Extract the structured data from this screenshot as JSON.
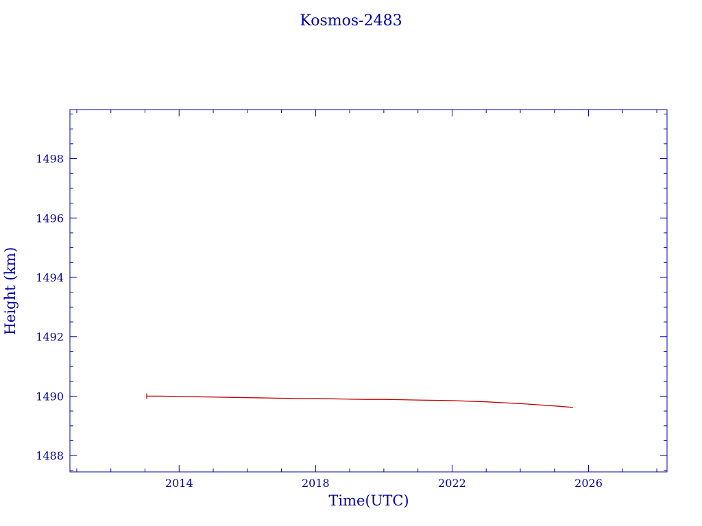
{
  "chart_data": {
    "type": "line",
    "title": "Kosmos-2483",
    "xlabel": "Time(UTC)",
    "ylabel": "Height (km)",
    "xlim": [
      2010.8,
      2028.3
    ],
    "ylim": [
      1487.45,
      1499.65
    ],
    "x_ticks": [
      2014,
      2018,
      2022,
      2026
    ],
    "y_ticks": [
      1488,
      1490,
      1492,
      1494,
      1496,
      1498
    ],
    "grid": false,
    "colors": {
      "axes": "#0000a0",
      "text": "#0000a0",
      "line": "#c00000"
    },
    "series": [
      {
        "x": [
          2013.05,
          2013.5,
          2014.0,
          2014.5,
          2015.0,
          2015.5,
          2016.0,
          2016.5,
          2017.0,
          2017.5,
          2018.0,
          2018.5,
          2019.0,
          2019.5,
          2020.0,
          2020.5,
          2021.0,
          2021.5,
          2022.0,
          2022.5,
          2023.0,
          2023.5,
          2024.0,
          2024.5,
          2025.0,
          2025.55
        ],
        "y": [
          1490.0,
          1490.0,
          1489.99,
          1489.98,
          1489.97,
          1489.96,
          1489.95,
          1489.94,
          1489.93,
          1489.92,
          1489.92,
          1489.91,
          1489.9,
          1489.89,
          1489.89,
          1489.88,
          1489.87,
          1489.86,
          1489.85,
          1489.83,
          1489.81,
          1489.78,
          1489.75,
          1489.71,
          1489.67,
          1489.62
        ]
      }
    ]
  }
}
